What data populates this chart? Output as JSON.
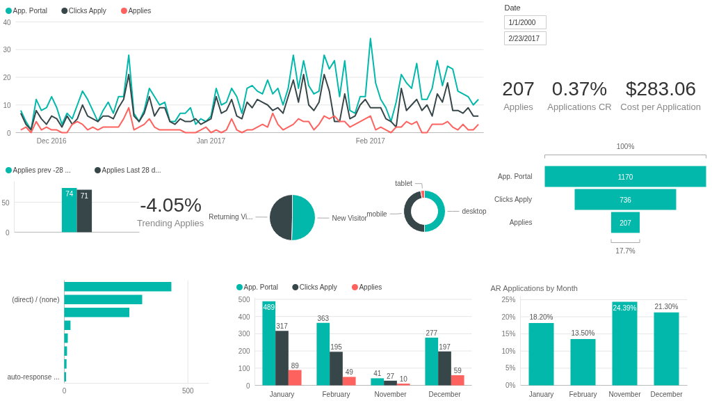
{
  "chart_data": [
    {
      "type": "line",
      "x": [
        "2016-11-25",
        "2016-11-26",
        "2016-11-27",
        "2016-11-28",
        "2016-11-29",
        "2016-11-30",
        "2016-12-01",
        "2016-12-02",
        "2016-12-03",
        "2016-12-04",
        "2016-12-05",
        "2016-12-06",
        "2016-12-07",
        "2016-12-08",
        "2016-12-09",
        "2016-12-10",
        "2016-12-11",
        "2016-12-12",
        "2016-12-13",
        "2016-12-14",
        "2016-12-15",
        "2016-12-16",
        "2016-12-17",
        "2016-12-18",
        "2016-12-19",
        "2016-12-20",
        "2016-12-21",
        "2016-12-22",
        "2016-12-23",
        "2016-12-24",
        "2016-12-25",
        "2016-12-26",
        "2016-12-27",
        "2016-12-28",
        "2016-12-29",
        "2016-12-30",
        "2016-12-31",
        "2017-01-01",
        "2017-01-02",
        "2017-01-03",
        "2017-01-04",
        "2017-01-05",
        "2017-01-06",
        "2017-01-07",
        "2017-01-08",
        "2017-01-09",
        "2017-01-10",
        "2017-01-11",
        "2017-01-12",
        "2017-01-13",
        "2017-01-14",
        "2017-01-15",
        "2017-01-16",
        "2017-01-17",
        "2017-01-18",
        "2017-01-19",
        "2017-01-20",
        "2017-01-21",
        "2017-01-22",
        "2017-01-23",
        "2017-01-24",
        "2017-01-25",
        "2017-01-26",
        "2017-01-27",
        "2017-01-28",
        "2017-01-29",
        "2017-01-30",
        "2017-01-31",
        "2017-02-01",
        "2017-02-02",
        "2017-02-03",
        "2017-02-04",
        "2017-02-05",
        "2017-02-06",
        "2017-02-07",
        "2017-02-08",
        "2017-02-09",
        "2017-02-10",
        "2017-02-11",
        "2017-02-12",
        "2017-02-13",
        "2017-02-14",
        "2017-02-15",
        "2017-02-16",
        "2017-02-17",
        "2017-02-18",
        "2017-02-19",
        "2017-02-20",
        "2017-02-21",
        "2017-02-22"
      ],
      "series": [
        {
          "name": "App. Portal",
          "color": "#01b8aa",
          "values": [
            8,
            4,
            1,
            12,
            8,
            9,
            13,
            9,
            3,
            7,
            5,
            10,
            15,
            12,
            8,
            4,
            8,
            11,
            7,
            13,
            13,
            28,
            7,
            4,
            8,
            16,
            13,
            10,
            11,
            4,
            4,
            7,
            7,
            9,
            3,
            5,
            4,
            6,
            16,
            10,
            11,
            16,
            13,
            7,
            16,
            17,
            15,
            14,
            19,
            14,
            16,
            10,
            16,
            28,
            16,
            26,
            17,
            14,
            15,
            28,
            23,
            26,
            13,
            26,
            8,
            7,
            13,
            13,
            34,
            18,
            12,
            9,
            4,
            11,
            21,
            18,
            16,
            25,
            12,
            12,
            16,
            26,
            17,
            24,
            23,
            15,
            14,
            13,
            10,
            12
          ]
        },
        {
          "name": "Clicks Apply",
          "color": "#374649",
          "values": [
            7,
            3,
            1,
            8,
            5,
            3,
            6,
            5,
            2,
            6,
            3,
            5,
            10,
            6,
            5,
            4,
            6,
            6,
            5,
            9,
            12,
            21,
            6,
            4,
            7,
            13,
            6,
            9,
            9,
            4,
            3,
            5,
            4,
            4,
            5,
            3,
            4,
            5,
            13,
            7,
            8,
            12,
            6,
            5,
            11,
            9,
            12,
            11,
            10,
            8,
            9,
            7,
            13,
            19,
            11,
            21,
            10,
            8,
            11,
            21,
            15,
            4,
            4,
            14,
            5,
            6,
            10,
            12,
            9,
            9,
            9,
            5,
            4,
            2,
            16,
            8,
            10,
            12,
            8,
            10,
            6,
            14,
            11,
            18,
            8,
            8,
            7,
            9,
            6,
            6
          ]
        },
        {
          "name": "Applies",
          "color": "#fd625e",
          "values": [
            1,
            2,
            0,
            4,
            1,
            2,
            1,
            1,
            0,
            0,
            3,
            4,
            3,
            1,
            2,
            1,
            2,
            2,
            2,
            2,
            5,
            9,
            1,
            2,
            3,
            5,
            2,
            1,
            1,
            1,
            1,
            1,
            0,
            0,
            0,
            1,
            2,
            0,
            1,
            0,
            1,
            5,
            1,
            0,
            1,
            1,
            2,
            3,
            2,
            7,
            3,
            1,
            2,
            3,
            5,
            4,
            4,
            1,
            3,
            6,
            5,
            6,
            4,
            4,
            2,
            3,
            4,
            5,
            6,
            1,
            2,
            1,
            0,
            2,
            2,
            4,
            3,
            4,
            0,
            0,
            3,
            3,
            3,
            4,
            2,
            1,
            3,
            1,
            1,
            3
          ]
        }
      ],
      "xlim": [
        "2016-11-24",
        "2017-02-23"
      ],
      "xticks": [
        {
          "value": "2016-12-01",
          "label": "Dec 2016"
        },
        {
          "value": "2017-01-01",
          "label": "Jan 2017"
        },
        {
          "value": "2017-02-01",
          "label": "Feb 2017"
        }
      ],
      "ylim": [
        0,
        40
      ],
      "yticks": [
        0,
        10,
        20,
        30,
        40
      ],
      "grid": "y",
      "legend": "top left",
      "line_style": "solid"
    },
    {
      "type": "other",
      "title": "Date",
      "annotations": [
        "1/1/2000",
        "2/23/2017"
      ]
    },
    {
      "type": "other",
      "annotations": [
        "207",
        "Applies",
        "0.37%",
        "Applications CR",
        "$283.06",
        "Cost per Application"
      ]
    },
    {
      "type": "bar",
      "categories": [
        null
      ],
      "series": [
        {
          "name": "Applies prev -28 ...",
          "color": "#01b8aa",
          "values": [
            74
          ]
        },
        {
          "name": "Applies Last 28 d...",
          "color": "#374649",
          "values": [
            71
          ]
        }
      ],
      "ylim": [
        0,
        85
      ],
      "yticks": [
        0,
        50
      ],
      "grid": "y",
      "legend": "top left",
      "data_labels": true
    },
    {
      "type": "other",
      "annotations": [
        "-4.05%",
        "Trending Applies"
      ]
    },
    {
      "type": "pie",
      "categories": [
        "New Visitor",
        "Returning Vi..."
      ],
      "values": [
        50.5,
        49.5
      ],
      "colors": [
        "#01b8aa",
        "#374649"
      ]
    },
    {
      "type": "donut",
      "categories": [
        "desktop",
        "mobile",
        "tablet"
      ],
      "values": [
        50,
        47,
        3
      ],
      "colors": [
        "#01b8aa",
        "#374649",
        "#fd625e"
      ]
    },
    {
      "type": "other",
      "categories": [
        "App. Portal",
        "Clicks Apply",
        "Applies"
      ],
      "values": [
        1170,
        736,
        207
      ],
      "color": "#01b8aa",
      "data_labels": true,
      "annotations": [
        "100%",
        "17.7%"
      ]
    },
    {
      "type": "bar",
      "orientation": "horizontal",
      "categories": [
        null,
        "(direct) / (none)",
        null,
        null,
        null,
        null,
        null,
        "auto-response ..."
      ],
      "values": [
        433,
        315,
        263,
        25,
        14,
        11,
        9,
        7
      ],
      "color": "#01b8aa",
      "xlim": [
        0,
        585
      ],
      "xticks": [
        0,
        500
      ],
      "grid": "x"
    },
    {
      "type": "bar",
      "categories": [
        "January",
        "February",
        "November",
        "December"
      ],
      "series": [
        {
          "name": "App. Portal",
          "color": "#01b8aa",
          "values": [
            489,
            363,
            41,
            277
          ]
        },
        {
          "name": "Clicks Apply",
          "color": "#374649",
          "values": [
            317,
            195,
            27,
            197
          ]
        },
        {
          "name": "Applies",
          "color": "#fd625e",
          "values": [
            89,
            49,
            10,
            59
          ]
        }
      ],
      "ylim": [
        0,
        510
      ],
      "yticks": [
        0,
        100,
        200,
        300,
        400,
        500
      ],
      "grid": "y",
      "legend": "top left",
      "data_labels": true
    },
    {
      "type": "bar",
      "title": "AR Applications by Month",
      "categories": [
        "January",
        "February",
        "November",
        "December"
      ],
      "values": [
        18.2,
        13.5,
        24.39,
        21.3
      ],
      "value_labels": [
        "18.20%",
        "13.50%",
        "24.39%",
        "21.30%"
      ],
      "color": "#01b8aa",
      "ylim": [
        0,
        26
      ],
      "yticks": [
        {
          "value": 0,
          "label": "0%"
        },
        {
          "value": 5,
          "label": "5%"
        },
        {
          "value": 10,
          "label": "10%"
        },
        {
          "value": 15,
          "label": "15%"
        },
        {
          "value": 20,
          "label": "20%"
        },
        {
          "value": 25,
          "label": "25%"
        }
      ],
      "grid": "y"
    }
  ]
}
